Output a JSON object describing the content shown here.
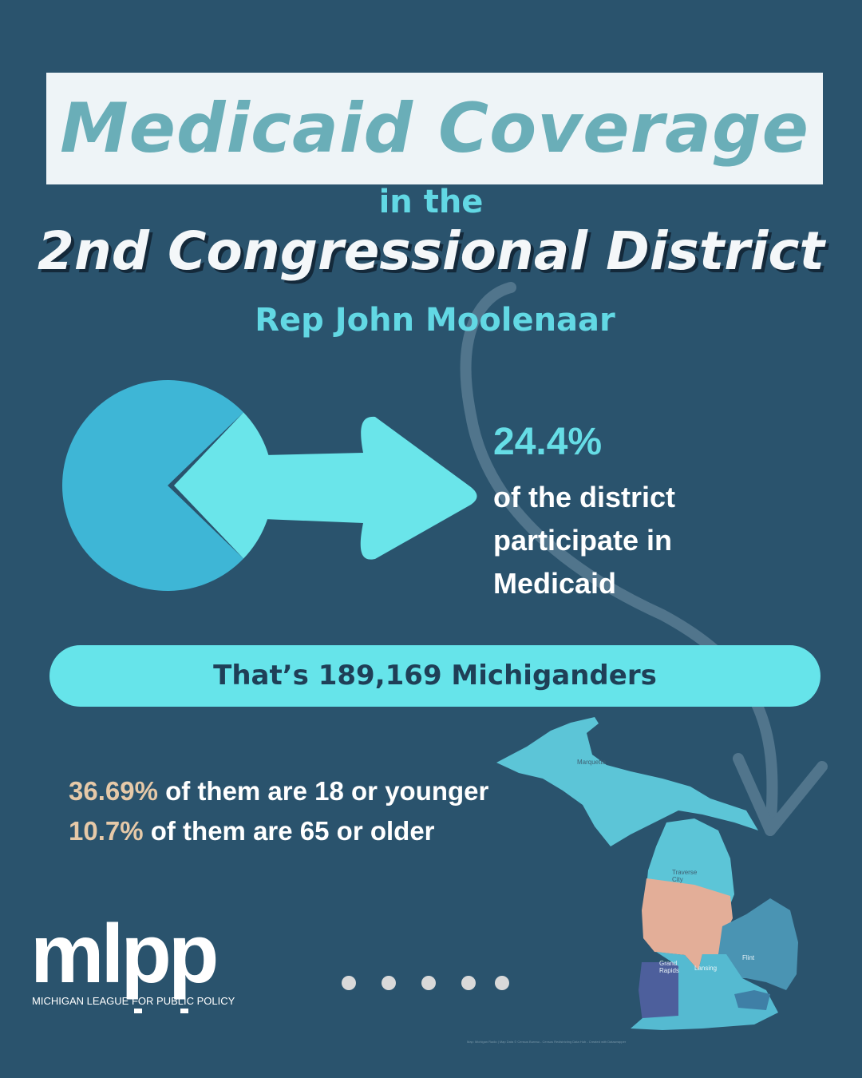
{
  "header": {
    "title": "Medicaid Coverage",
    "in_the": "in the",
    "district": "2nd Congressional District",
    "representative": "Rep John Moolenaar"
  },
  "stat": {
    "percent": "24.4%",
    "description": "of the district participate in Medicaid",
    "pie_share": 0.244,
    "colors": {
      "pie_main": "#3eb6d6",
      "pie_slice": "#6ae5ea",
      "arrow": "#6ae5ea"
    }
  },
  "banner": {
    "text": "That’s 189,169 Michiganders"
  },
  "demographics": {
    "youth_percent": "36.69%",
    "youth_text": " of them are 18 or younger",
    "senior_percent": "10.7%",
    "senior_text": " of them are 65 or older",
    "highlight_color": "#e6c9a8"
  },
  "map": {
    "labels": {
      "marquette": "Marquette",
      "traverse_city": "Traverse City",
      "grand_rapids": "Grand Rapids",
      "lansing": "Lansing",
      "flint": "Flint"
    },
    "source": "Map: Michigan Radio | Map Data © Census Bureau - Census Redistricting Data Hub - Created with Datawrapper",
    "highlight_color": "#e3ae98"
  },
  "logo": {
    "text": "mlpp",
    "subtitle": "MICHIGAN LEAGUE FOR PUBLIC POLICY"
  },
  "pagination": {
    "total": 5
  },
  "colors": {
    "background": "#2a536d",
    "accent": "#62d8e4",
    "title": "#6aaeb8"
  }
}
